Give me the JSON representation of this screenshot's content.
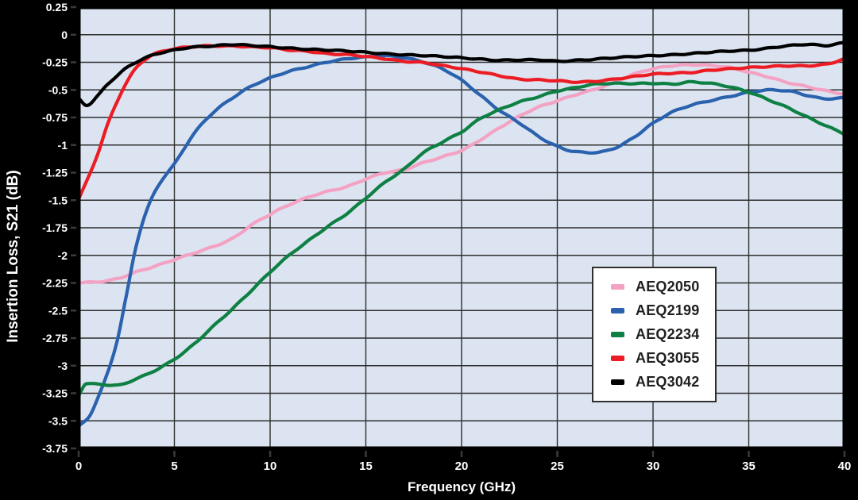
{
  "figure": {
    "background": "#000000",
    "plot": {
      "background": "#dbe4f0",
      "grid_color": "#2e2e2e",
      "border_color": "#000000",
      "tick_color": "#3a3a3a",
      "text_color": "#ffffff"
    },
    "legend": {
      "background": "#ffffff",
      "border_color": "#2f2f2f",
      "text_color": "#202020"
    }
  },
  "chart_data": {
    "type": "line",
    "title": "",
    "xlabel": "Frequency (GHz)",
    "ylabel": "Insertion Loss, S21 (dB)",
    "xlim": [
      0,
      40
    ],
    "ylim": [
      -3.75,
      0.25
    ],
    "grid": true,
    "grid_x_step": 5,
    "grid_y_step": 0.25,
    "legend_position": "inside-right",
    "x_ticks": [
      0,
      5,
      10,
      15,
      20,
      25,
      30,
      35,
      40
    ],
    "x_tick_labels": [
      "0",
      "5",
      "10",
      "15",
      "20",
      "25",
      "30",
      "35",
      "40"
    ],
    "y_ticks": [
      0.25,
      0,
      -0.25,
      -0.5,
      -0.75,
      -1,
      -1.25,
      -1.5,
      -1.75,
      -2,
      -2.25,
      -2.5,
      -2.75,
      -3,
      -3.25,
      -3.5,
      -3.75
    ],
    "y_tick_labels": [
      "0.25",
      "0",
      "-0.25",
      "-0.5",
      "-0.75",
      "-1",
      "-1.25",
      "-1.5",
      "-1.75",
      "-2",
      "-2.25",
      "-2.5",
      "-2.75",
      "-3",
      "-3.25",
      "-3.5",
      "-3.75"
    ],
    "series": [
      {
        "name": "AEQ2050",
        "color": "#f4a2c3",
        "points": [
          [
            0,
            -2.25
          ],
          [
            1,
            -2.24
          ],
          [
            2,
            -2.21
          ],
          [
            3,
            -2.15
          ],
          [
            4,
            -2.1
          ],
          [
            5,
            -2.04
          ],
          [
            6,
            -1.98
          ],
          [
            7,
            -1.92
          ],
          [
            8,
            -1.85
          ],
          [
            9,
            -1.73
          ],
          [
            10,
            -1.63
          ],
          [
            11,
            -1.54
          ],
          [
            12,
            -1.47
          ],
          [
            13,
            -1.42
          ],
          [
            14,
            -1.38
          ],
          [
            15,
            -1.31
          ],
          [
            16,
            -1.25
          ],
          [
            17,
            -1.22
          ],
          [
            18,
            -1.16
          ],
          [
            19,
            -1.11
          ],
          [
            20,
            -1.05
          ],
          [
            21,
            -0.95
          ],
          [
            22,
            -0.84
          ],
          [
            23,
            -0.74
          ],
          [
            24,
            -0.66
          ],
          [
            25,
            -0.6
          ],
          [
            26,
            -0.54
          ],
          [
            27,
            -0.49
          ],
          [
            28,
            -0.43
          ],
          [
            29,
            -0.36
          ],
          [
            30,
            -0.31
          ],
          [
            31,
            -0.28
          ],
          [
            32,
            -0.27
          ],
          [
            33,
            -0.28
          ],
          [
            34,
            -0.3
          ],
          [
            35,
            -0.34
          ],
          [
            36,
            -0.38
          ],
          [
            37,
            -0.43
          ],
          [
            38,
            -0.47
          ],
          [
            39,
            -0.51
          ],
          [
            40,
            -0.54
          ]
        ]
      },
      {
        "name": "AEQ2199",
        "color": "#2b62ae",
        "points": [
          [
            0,
            -3.55
          ],
          [
            0.5,
            -3.47
          ],
          [
            1,
            -3.29
          ],
          [
            1.5,
            -3.07
          ],
          [
            2,
            -2.78
          ],
          [
            2.5,
            -2.36
          ],
          [
            3,
            -1.92
          ],
          [
            3.5,
            -1.62
          ],
          [
            4,
            -1.42
          ],
          [
            4.5,
            -1.28
          ],
          [
            5,
            -1.17
          ],
          [
            6,
            -0.9
          ],
          [
            7,
            -0.71
          ],
          [
            8,
            -0.58
          ],
          [
            9,
            -0.47
          ],
          [
            10,
            -0.39
          ],
          [
            11,
            -0.33
          ],
          [
            12,
            -0.29
          ],
          [
            13,
            -0.25
          ],
          [
            14,
            -0.22
          ],
          [
            15,
            -0.2
          ],
          [
            16,
            -0.19
          ],
          [
            17,
            -0.21
          ],
          [
            18,
            -0.25
          ],
          [
            19,
            -0.31
          ],
          [
            20,
            -0.41
          ],
          [
            21,
            -0.55
          ],
          [
            22,
            -0.69
          ],
          [
            23,
            -0.8
          ],
          [
            24,
            -0.92
          ],
          [
            25,
            -1.01
          ],
          [
            26,
            -1.06
          ],
          [
            27,
            -1.07
          ],
          [
            28,
            -1.03
          ],
          [
            29,
            -0.93
          ],
          [
            30,
            -0.8
          ],
          [
            31,
            -0.7
          ],
          [
            32,
            -0.64
          ],
          [
            33,
            -0.6
          ],
          [
            34,
            -0.56
          ],
          [
            35,
            -0.52
          ],
          [
            36,
            -0.5
          ],
          [
            37,
            -0.51
          ],
          [
            38,
            -0.55
          ],
          [
            39,
            -0.58
          ],
          [
            40,
            -0.57
          ]
        ]
      },
      {
        "name": "AEQ2234",
        "color": "#0e8043",
        "points": [
          [
            0,
            -3.27
          ],
          [
            0.4,
            -3.16
          ],
          [
            1,
            -3.17
          ],
          [
            2,
            -3.18
          ],
          [
            3,
            -3.12
          ],
          [
            4,
            -3.04
          ],
          [
            5,
            -2.94
          ],
          [
            6,
            -2.81
          ],
          [
            7,
            -2.65
          ],
          [
            8,
            -2.49
          ],
          [
            9,
            -2.32
          ],
          [
            10,
            -2.15
          ],
          [
            11,
            -2.0
          ],
          [
            12,
            -1.87
          ],
          [
            13,
            -1.74
          ],
          [
            14,
            -1.62
          ],
          [
            15,
            -1.48
          ],
          [
            16,
            -1.34
          ],
          [
            17,
            -1.22
          ],
          [
            18,
            -1.07
          ],
          [
            19,
            -0.97
          ],
          [
            20,
            -0.88
          ],
          [
            21,
            -0.76
          ],
          [
            22,
            -0.68
          ],
          [
            23,
            -0.61
          ],
          [
            24,
            -0.56
          ],
          [
            25,
            -0.51
          ],
          [
            26,
            -0.48
          ],
          [
            27,
            -0.45
          ],
          [
            28,
            -0.44
          ],
          [
            29,
            -0.44
          ],
          [
            30,
            -0.44
          ],
          [
            31,
            -0.45
          ],
          [
            32,
            -0.43
          ],
          [
            33,
            -0.44
          ],
          [
            34,
            -0.47
          ],
          [
            35,
            -0.52
          ],
          [
            36,
            -0.59
          ],
          [
            37,
            -0.66
          ],
          [
            38,
            -0.74
          ],
          [
            39,
            -0.82
          ],
          [
            40,
            -0.9
          ]
        ]
      },
      {
        "name": "AEQ3055",
        "color": "#ec1c24",
        "points": [
          [
            0,
            -1.49
          ],
          [
            0.5,
            -1.3
          ],
          [
            1,
            -1.08
          ],
          [
            1.5,
            -0.82
          ],
          [
            2,
            -0.61
          ],
          [
            2.5,
            -0.43
          ],
          [
            3,
            -0.3
          ],
          [
            3.5,
            -0.22
          ],
          [
            4,
            -0.17
          ],
          [
            5,
            -0.13
          ],
          [
            6,
            -0.11
          ],
          [
            7,
            -0.1
          ],
          [
            8,
            -0.1
          ],
          [
            9,
            -0.11
          ],
          [
            10,
            -0.12
          ],
          [
            11,
            -0.14
          ],
          [
            12,
            -0.15
          ],
          [
            13,
            -0.17
          ],
          [
            14,
            -0.18
          ],
          [
            15,
            -0.2
          ],
          [
            16,
            -0.22
          ],
          [
            17,
            -0.24
          ],
          [
            18,
            -0.25
          ],
          [
            19,
            -0.28
          ],
          [
            20,
            -0.31
          ],
          [
            21,
            -0.34
          ],
          [
            22,
            -0.37
          ],
          [
            23,
            -0.4
          ],
          [
            24,
            -0.41
          ],
          [
            25,
            -0.42
          ],
          [
            26,
            -0.43
          ],
          [
            27,
            -0.42
          ],
          [
            28,
            -0.4
          ],
          [
            29,
            -0.38
          ],
          [
            30,
            -0.36
          ],
          [
            31,
            -0.35
          ],
          [
            32,
            -0.34
          ],
          [
            33,
            -0.32
          ],
          [
            34,
            -0.31
          ],
          [
            35,
            -0.3
          ],
          [
            36,
            -0.29
          ],
          [
            37,
            -0.28
          ],
          [
            38,
            -0.28
          ],
          [
            39,
            -0.27
          ],
          [
            40,
            -0.22
          ]
        ]
      },
      {
        "name": "AEQ3042",
        "color": "#000000",
        "points": [
          [
            0,
            -0.58
          ],
          [
            0.4,
            -0.64
          ],
          [
            1,
            -0.55
          ],
          [
            1.5,
            -0.45
          ],
          [
            2,
            -0.37
          ],
          [
            2.5,
            -0.3
          ],
          [
            3,
            -0.25
          ],
          [
            3.5,
            -0.21
          ],
          [
            4,
            -0.18
          ],
          [
            5,
            -0.14
          ],
          [
            6,
            -0.11
          ],
          [
            7,
            -0.1
          ],
          [
            8,
            -0.09
          ],
          [
            9,
            -0.1
          ],
          [
            10,
            -0.11
          ],
          [
            11,
            -0.12
          ],
          [
            12,
            -0.13
          ],
          [
            13,
            -0.14
          ],
          [
            14,
            -0.15
          ],
          [
            15,
            -0.16
          ],
          [
            16,
            -0.17
          ],
          [
            17,
            -0.18
          ],
          [
            18,
            -0.19
          ],
          [
            19,
            -0.2
          ],
          [
            20,
            -0.21
          ],
          [
            21,
            -0.22
          ],
          [
            22,
            -0.23
          ],
          [
            23,
            -0.23
          ],
          [
            24,
            -0.23
          ],
          [
            25,
            -0.24
          ],
          [
            26,
            -0.23
          ],
          [
            27,
            -0.22
          ],
          [
            28,
            -0.21
          ],
          [
            29,
            -0.2
          ],
          [
            30,
            -0.19
          ],
          [
            31,
            -0.18
          ],
          [
            32,
            -0.17
          ],
          [
            33,
            -0.16
          ],
          [
            34,
            -0.15
          ],
          [
            35,
            -0.14
          ],
          [
            36,
            -0.12
          ],
          [
            37,
            -0.1
          ],
          [
            38,
            -0.09
          ],
          [
            39,
            -0.1
          ],
          [
            40,
            -0.07
          ]
        ]
      }
    ]
  }
}
